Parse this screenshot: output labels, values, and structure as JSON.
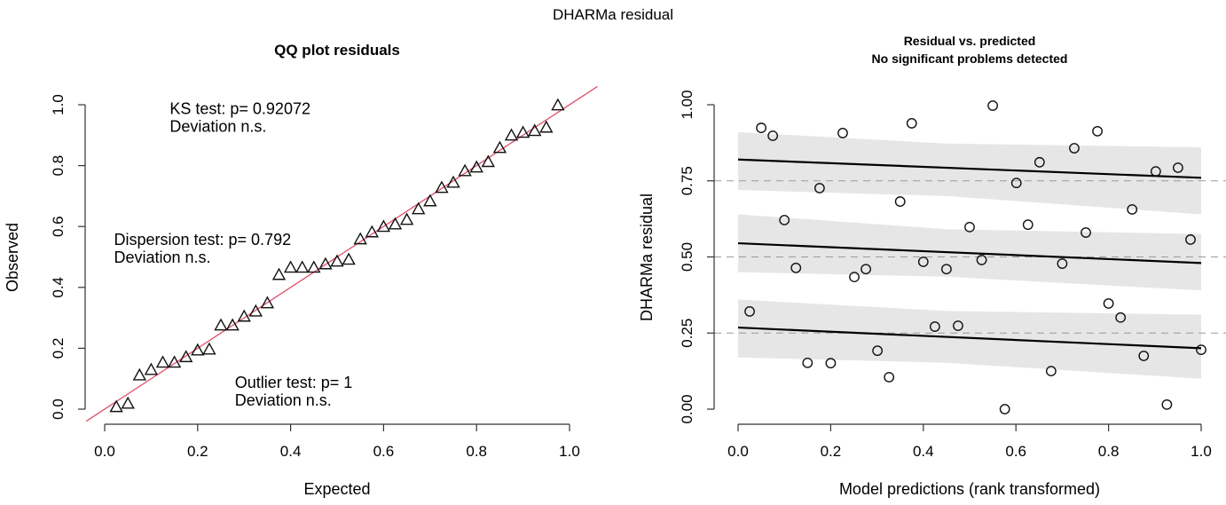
{
  "figure_title": "DHARMa residual",
  "chart_data": [
    {
      "type": "scatter",
      "title": "QQ plot residuals",
      "xlabel": "Expected",
      "ylabel": "Observed",
      "xlim": [
        0,
        1
      ],
      "ylim": [
        0,
        1
      ],
      "xticks": [
        "0.0",
        "0.2",
        "0.4",
        "0.6",
        "0.8",
        "1.0"
      ],
      "yticks": [
        "0.0",
        "0.2",
        "0.4",
        "0.6",
        "0.8",
        "1.0"
      ],
      "marker": "triangle",
      "reference_line": {
        "slope": 1,
        "intercept": 0,
        "color": "#e0506a"
      },
      "annotations": [
        {
          "name": "ks-test",
          "lines": [
            "KS test: p= 0.92072",
            "Deviation  n.s."
          ],
          "x": 0.14,
          "y": 0.97
        },
        {
          "name": "dispersion-test",
          "lines": [
            "Dispersion test: p= 0.792",
            "Deviation  n.s."
          ],
          "x": 0.02,
          "y": 0.54
        },
        {
          "name": "outlier-test",
          "lines": [
            "Outlier test: p= 1",
            "Deviation  n.s."
          ],
          "x": 0.28,
          "y": 0.07
        }
      ],
      "x": [
        0.025,
        0.05,
        0.075,
        0.1,
        0.125,
        0.15,
        0.175,
        0.2,
        0.225,
        0.25,
        0.275,
        0.3,
        0.325,
        0.35,
        0.375,
        0.4,
        0.425,
        0.45,
        0.475,
        0.5,
        0.525,
        0.55,
        0.575,
        0.6,
        0.625,
        0.65,
        0.675,
        0.7,
        0.725,
        0.75,
        0.775,
        0.8,
        0.825,
        0.85,
        0.875,
        0.9,
        0.925,
        0.95,
        0.975
      ],
      "y": [
        0.006,
        0.017,
        0.11,
        0.128,
        0.152,
        0.152,
        0.17,
        0.192,
        0.195,
        0.274,
        0.274,
        0.303,
        0.32,
        0.347,
        0.44,
        0.464,
        0.464,
        0.464,
        0.475,
        0.484,
        0.49,
        0.557,
        0.58,
        0.598,
        0.606,
        0.621,
        0.656,
        0.682,
        0.726,
        0.743,
        0.781,
        0.793,
        0.811,
        0.857,
        0.898,
        0.907,
        0.913,
        0.924,
        0.997
      ]
    },
    {
      "type": "scatter",
      "title": "Residual vs. predicted",
      "subtitle": "No significant problems detected",
      "xlabel": "Model predictions (rank transformed)",
      "ylabel": "DHARMa residual",
      "xlim": [
        0,
        1
      ],
      "ylim": [
        0,
        1
      ],
      "xticks": [
        "0.0",
        "0.2",
        "0.4",
        "0.6",
        "0.8",
        "1.0"
      ],
      "yticks": [
        "0.00",
        "0.25",
        "0.50",
        "0.75",
        "1.00"
      ],
      "marker": "circle",
      "reference_lines_y": [
        0.25,
        0.5,
        0.75
      ],
      "quantile_fits": [
        {
          "quantile": 0.25,
          "y_at_x0": 0.268,
          "y_at_x1": 0.2,
          "band_lower": [
            0.17,
            0.1
          ],
          "band_upper": [
            0.36,
            0.31
          ]
        },
        {
          "quantile": 0.5,
          "y_at_x0": 0.545,
          "y_at_x1": 0.48,
          "band_lower": [
            0.45,
            0.39
          ],
          "band_upper": [
            0.64,
            0.575
          ]
        },
        {
          "quantile": 0.75,
          "y_at_x0": 0.82,
          "y_at_x1": 0.76,
          "band_lower": [
            0.72,
            0.64
          ],
          "band_upper": [
            0.91,
            0.86
          ]
        }
      ],
      "band_color": "#e6e6e6",
      "points": [
        [
          0.025,
          0.321
        ],
        [
          0.05,
          0.924
        ],
        [
          0.075,
          0.898
        ],
        [
          0.1,
          0.621
        ],
        [
          0.125,
          0.464
        ],
        [
          0.15,
          0.152
        ],
        [
          0.176,
          0.726
        ],
        [
          0.2,
          0.151
        ],
        [
          0.226,
          0.907
        ],
        [
          0.251,
          0.434
        ],
        [
          0.276,
          0.46
        ],
        [
          0.301,
          0.192
        ],
        [
          0.326,
          0.105
        ],
        [
          0.35,
          0.682
        ],
        [
          0.375,
          0.939
        ],
        [
          0.4,
          0.484
        ],
        [
          0.425,
          0.271
        ],
        [
          0.45,
          0.46
        ],
        [
          0.475,
          0.274
        ],
        [
          0.5,
          0.598
        ],
        [
          0.526,
          0.49
        ],
        [
          0.55,
          0.997
        ],
        [
          0.576,
          0.0
        ],
        [
          0.601,
          0.743
        ],
        [
          0.626,
          0.606
        ],
        [
          0.651,
          0.811
        ],
        [
          0.676,
          0.125
        ],
        [
          0.7,
          0.478
        ],
        [
          0.726,
          0.857
        ],
        [
          0.751,
          0.58
        ],
        [
          0.776,
          0.913
        ],
        [
          0.8,
          0.347
        ],
        [
          0.826,
          0.301
        ],
        [
          0.851,
          0.656
        ],
        [
          0.876,
          0.175
        ],
        [
          0.902,
          0.781
        ],
        [
          0.926,
          0.015
        ],
        [
          0.95,
          0.793
        ],
        [
          0.977,
          0.557
        ],
        [
          1.0,
          0.195
        ]
      ]
    }
  ]
}
